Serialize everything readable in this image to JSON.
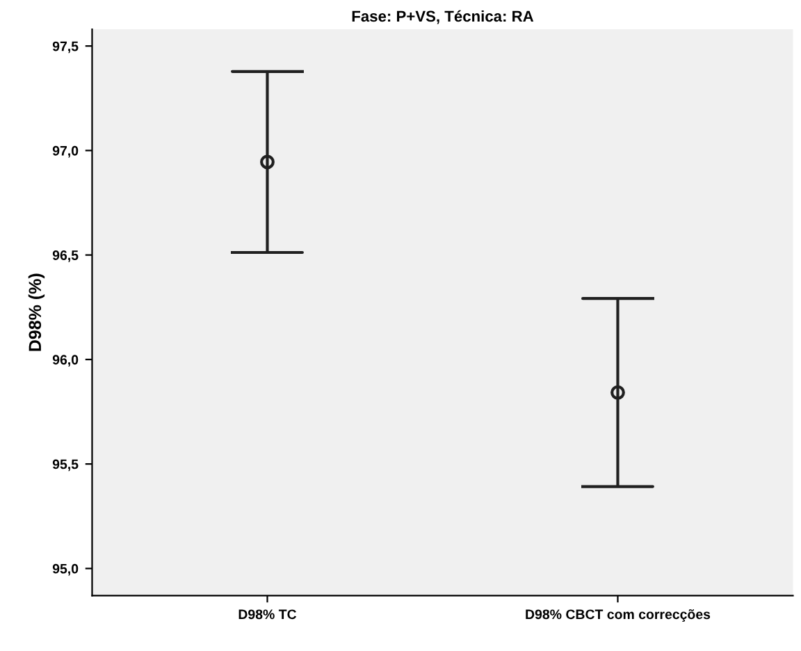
{
  "chart_data": {
    "type": "scatter",
    "title": "Fase: P+VS, Técnica: RA",
    "ylabel": "D98% (%)",
    "categories": [
      "D98% TC",
      "D98% CBCT com correcções"
    ],
    "color": "#202020",
    "values": [
      96.945,
      95.842
    ],
    "errors": [
      0.433,
      0.45
    ],
    "marker": "circle",
    "ylim": [
      94.87,
      97.58
    ],
    "yticks": [
      {
        "value": 95.0,
        "label": "95,0"
      },
      {
        "value": 95.5,
        "label": "95,5"
      },
      {
        "value": 96.0,
        "label": "96,0"
      },
      {
        "value": 96.5,
        "label": "96,5"
      },
      {
        "value": 97.0,
        "label": "97,0"
      },
      {
        "value": 97.5,
        "label": "97,5"
      }
    ],
    "grid": false,
    "legend": false
  }
}
